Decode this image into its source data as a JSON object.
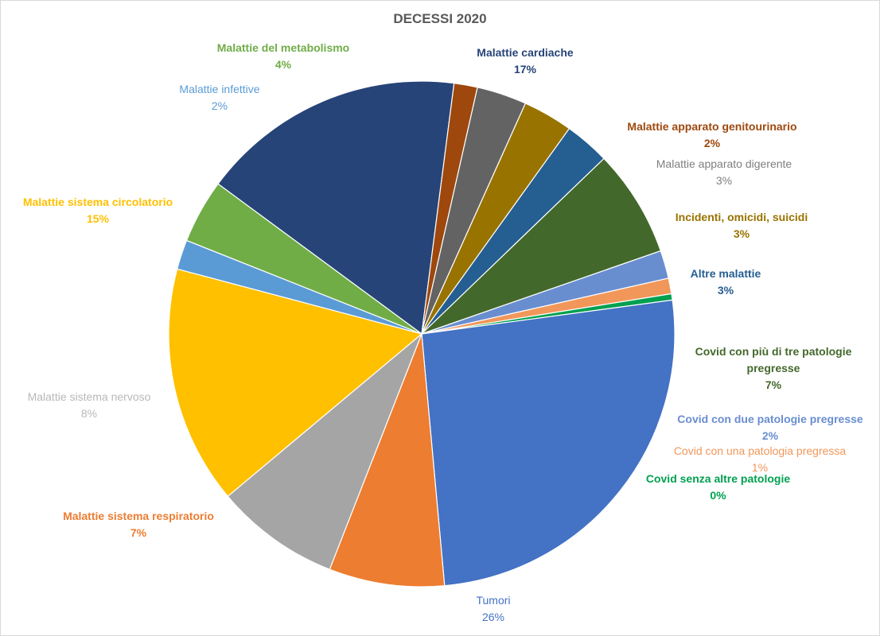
{
  "chart_data": {
    "type": "pie",
    "title": "DECESSI 2020",
    "legend": "none",
    "data_labels": "category name and percentage, outside slices",
    "slices": [
      {
        "name": "Malattie cardiache",
        "value": 17,
        "label": "17%",
        "color": "#264478",
        "label_color": "#264478"
      },
      {
        "name": "Malattie apparato genitourinario",
        "value": 1.5,
        "label": "2%",
        "color": "#9e480e",
        "label_color": "#9e480e"
      },
      {
        "name": "Malattie apparato digerente",
        "value": 3.2,
        "label": "3%",
        "color": "#636363",
        "label_color": "#7f7f7f"
      },
      {
        "name": "Incidenti, omicidi, suicidi",
        "value": 3.2,
        "label": "3%",
        "color": "#997300",
        "label_color": "#997300"
      },
      {
        "name": "Altre malattie",
        "value": 2.9,
        "label": "3%",
        "color": "#255e91",
        "label_color": "#255e91"
      },
      {
        "name": "Covid con più di tre patologie pregresse",
        "value": 6.9,
        "label": "7%",
        "color": "#43682b",
        "label_color": "#43682b"
      },
      {
        "name": "Covid con due patologie pregresse",
        "value": 1.8,
        "label": "2%",
        "color": "#698ed0",
        "label_color": "#698ed0"
      },
      {
        "name": "Covid con una patologia pregressa",
        "value": 1.0,
        "label": "1%",
        "color": "#f1975a",
        "label_color": "#f1975a"
      },
      {
        "name": "Covid senza altre patologie",
        "value": 0.4,
        "label": "0%",
        "color": "#00a050",
        "label_color": "#00a050"
      },
      {
        "name": "Tumori",
        "value": 25.8,
        "label": "26%",
        "color": "#4472c4",
        "label_color": "#4472c4"
      },
      {
        "name": "Malattie sistema respiratorio",
        "value": 7.4,
        "label": "7%",
        "color": "#ed7d31",
        "label_color": "#ed7d31"
      },
      {
        "name": "Malattie sistema nervoso",
        "value": 8.0,
        "label": "8%",
        "color": "#a5a5a5",
        "label_color": "#b8b8b8"
      },
      {
        "name": "Malattie sistema circolatorio",
        "value": 15.3,
        "label": "15%",
        "color": "#ffc000",
        "label_color": "#ffc000"
      },
      {
        "name": "Malattie infettive",
        "value": 1.9,
        "label": "2%",
        "color": "#5b9bd5",
        "label_color": "#5b9bd5"
      },
      {
        "name": "Malattie del metabolismo",
        "value": 4.1,
        "label": "4%",
        "color": "#70ad47",
        "label_color": "#70ad47"
      }
    ]
  }
}
